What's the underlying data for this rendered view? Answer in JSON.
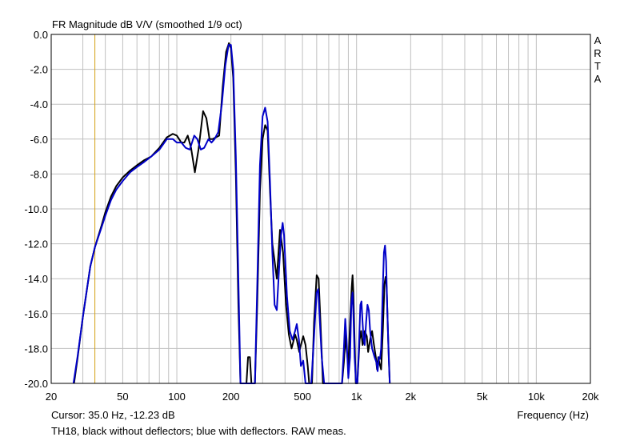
{
  "chart_data": {
    "type": "line",
    "title": "FR Magnitude dB V/V (smoothed 1/9 oct)",
    "brand_label": "ARTA",
    "xlabel": "Frequency (Hz)",
    "x_scale": "log",
    "xlim": [
      20,
      20000
    ],
    "ylim": [
      -20,
      0
    ],
    "grid": true,
    "x_ticks": [
      {
        "value": 20,
        "label": "20"
      },
      {
        "value": 50,
        "label": "50"
      },
      {
        "value": 100,
        "label": "100"
      },
      {
        "value": 200,
        "label": "200"
      },
      {
        "value": 500,
        "label": "500"
      },
      {
        "value": 1000,
        "label": "1k"
      },
      {
        "value": 2000,
        "label": "2k"
      },
      {
        "value": 5000,
        "label": "5k"
      },
      {
        "value": 10000,
        "label": "10k"
      },
      {
        "value": 20000,
        "label": "20k"
      }
    ],
    "y_ticks": [
      {
        "value": 0,
        "label": "0.0"
      },
      {
        "value": -2,
        "label": "-2.0"
      },
      {
        "value": -4,
        "label": "-4.0"
      },
      {
        "value": -6,
        "label": "-6.0"
      },
      {
        "value": -8,
        "label": "-8.0"
      },
      {
        "value": -10,
        "label": "-10.0"
      },
      {
        "value": -12,
        "label": "-12.0"
      },
      {
        "value": -14,
        "label": "-14.0"
      },
      {
        "value": -16,
        "label": "-16.0"
      },
      {
        "value": -18,
        "label": "-18.0"
      },
      {
        "value": -20,
        "label": "-20.0"
      }
    ],
    "cursor": {
      "x": 35.0,
      "color": "#d4a017"
    },
    "cursor_text": "Cursor: 35.0 Hz, -12.23 dB",
    "caption": "TH18, black without deflectors; blue with deflectors. RAW meas.",
    "series": [
      {
        "color": "#000000",
        "points": [
          [
            26.8,
            -20.0
          ],
          [
            28,
            -18.6
          ],
          [
            30,
            -16.2
          ],
          [
            33,
            -13.3
          ],
          [
            35,
            -12.2
          ],
          [
            38,
            -11.0
          ],
          [
            40,
            -10.2
          ],
          [
            43,
            -9.3
          ],
          [
            46,
            -8.7
          ],
          [
            50,
            -8.2
          ],
          [
            55,
            -7.8
          ],
          [
            60,
            -7.5
          ],
          [
            66,
            -7.2
          ],
          [
            72,
            -7.0
          ],
          [
            80,
            -6.5
          ],
          [
            88,
            -5.9
          ],
          [
            95,
            -5.7
          ],
          [
            100,
            -5.8
          ],
          [
            106,
            -6.2
          ],
          [
            110,
            -6.2
          ],
          [
            115,
            -5.8
          ],
          [
            120,
            -6.5
          ],
          [
            126,
            -7.9
          ],
          [
            132,
            -6.6
          ],
          [
            140,
            -4.4
          ],
          [
            146,
            -4.8
          ],
          [
            152,
            -6.0
          ],
          [
            158,
            -6.0
          ],
          [
            165,
            -5.9
          ],
          [
            172,
            -5.8
          ],
          [
            180,
            -3.0
          ],
          [
            188,
            -1.0
          ],
          [
            195,
            -0.5
          ],
          [
            200,
            -0.8
          ],
          [
            206,
            -2.5
          ],
          [
            213,
            -8.0
          ],
          [
            220,
            -15.5
          ],
          [
            226,
            -20.0
          ],
          [
            244,
            -20.0
          ],
          [
            249,
            -18.5
          ],
          [
            255,
            -18.5
          ],
          [
            260,
            -20.0
          ],
          [
            272,
            -20.0
          ],
          [
            280,
            -15.5
          ],
          [
            290,
            -9.0
          ],
          [
            300,
            -6.0
          ],
          [
            310,
            -5.2
          ],
          [
            320,
            -5.5
          ],
          [
            330,
            -9.0
          ],
          [
            340,
            -12.0
          ],
          [
            350,
            -13.0
          ],
          [
            360,
            -14.0
          ],
          [
            375,
            -11.2
          ],
          [
            390,
            -12.5
          ],
          [
            405,
            -15.5
          ],
          [
            420,
            -17.2
          ],
          [
            435,
            -18.0
          ],
          [
            445,
            -17.6
          ],
          [
            455,
            -17.2
          ],
          [
            465,
            -17.5
          ],
          [
            480,
            -18.2
          ],
          [
            490,
            -17.8
          ],
          [
            505,
            -17.3
          ],
          [
            520,
            -17.8
          ],
          [
            535,
            -19.0
          ],
          [
            545,
            -20.0
          ],
          [
            565,
            -20.0
          ],
          [
            580,
            -16.5
          ],
          [
            600,
            -13.8
          ],
          [
            615,
            -14.0
          ],
          [
            630,
            -16.5
          ],
          [
            650,
            -20.0
          ],
          [
            830,
            -20.0
          ],
          [
            850,
            -18.8
          ],
          [
            870,
            -17.2
          ],
          [
            880,
            -18.0
          ],
          [
            900,
            -19.0
          ],
          [
            920,
            -16.5
          ],
          [
            940,
            -14.5
          ],
          [
            950,
            -13.8
          ],
          [
            960,
            -14.8
          ],
          [
            975,
            -17.5
          ],
          [
            990,
            -20.0
          ],
          [
            1010,
            -20.0
          ],
          [
            1040,
            -17.5
          ],
          [
            1060,
            -17.0
          ],
          [
            1080,
            -17.8
          ],
          [
            1110,
            -17.0
          ],
          [
            1140,
            -17.3
          ],
          [
            1160,
            -18.2
          ],
          [
            1190,
            -17.5
          ],
          [
            1220,
            -17.0
          ],
          [
            1250,
            -17.8
          ],
          [
            1280,
            -18.5
          ],
          [
            1300,
            -19.2
          ],
          [
            1320,
            -18.5
          ],
          [
            1345,
            -18.9
          ],
          [
            1370,
            -19.2
          ],
          [
            1400,
            -17.0
          ],
          [
            1430,
            -14.3
          ],
          [
            1450,
            -13.9
          ],
          [
            1470,
            -14.5
          ],
          [
            1500,
            -17.5
          ],
          [
            1530,
            -20.0
          ]
        ]
      },
      {
        "color": "#0000c8",
        "points": [
          [
            26.6,
            -20.0
          ],
          [
            28,
            -18.5
          ],
          [
            30,
            -16.2
          ],
          [
            33,
            -13.3
          ],
          [
            35,
            -12.2
          ],
          [
            38,
            -11.1
          ],
          [
            40,
            -10.4
          ],
          [
            43,
            -9.5
          ],
          [
            46,
            -8.9
          ],
          [
            50,
            -8.4
          ],
          [
            55,
            -7.9
          ],
          [
            60,
            -7.6
          ],
          [
            66,
            -7.3
          ],
          [
            72,
            -7.0
          ],
          [
            80,
            -6.6
          ],
          [
            88,
            -6.0
          ],
          [
            95,
            -6.0
          ],
          [
            100,
            -6.2
          ],
          [
            106,
            -6.2
          ],
          [
            112,
            -6.5
          ],
          [
            118,
            -6.6
          ],
          [
            125,
            -5.8
          ],
          [
            130,
            -6.0
          ],
          [
            136,
            -6.6
          ],
          [
            142,
            -6.5
          ],
          [
            150,
            -6.0
          ],
          [
            156,
            -6.2
          ],
          [
            162,
            -6.0
          ],
          [
            170,
            -5.6
          ],
          [
            178,
            -4.0
          ],
          [
            186,
            -1.8
          ],
          [
            194,
            -0.6
          ],
          [
            200,
            -0.6
          ],
          [
            206,
            -2.0
          ],
          [
            213,
            -7.0
          ],
          [
            220,
            -14.0
          ],
          [
            226,
            -20.0
          ],
          [
            272,
            -20.0
          ],
          [
            280,
            -14.5
          ],
          [
            290,
            -7.5
          ],
          [
            300,
            -4.7
          ],
          [
            310,
            -4.2
          ],
          [
            320,
            -5.0
          ],
          [
            330,
            -8.5
          ],
          [
            340,
            -12.5
          ],
          [
            350,
            -15.5
          ],
          [
            360,
            -15.8
          ],
          [
            368,
            -14.0
          ],
          [
            380,
            -11.5
          ],
          [
            388,
            -10.8
          ],
          [
            395,
            -11.5
          ],
          [
            410,
            -15.0
          ],
          [
            425,
            -17.0
          ],
          [
            440,
            -17.5
          ],
          [
            455,
            -17.0
          ],
          [
            465,
            -16.6
          ],
          [
            478,
            -17.5
          ],
          [
            490,
            -19.0
          ],
          [
            505,
            -18.7
          ],
          [
            520,
            -20.0
          ],
          [
            560,
            -20.0
          ],
          [
            575,
            -18.0
          ],
          [
            590,
            -16.0
          ],
          [
            600,
            -14.8
          ],
          [
            612,
            -14.6
          ],
          [
            625,
            -16.5
          ],
          [
            640,
            -18.5
          ],
          [
            660,
            -20.0
          ],
          [
            830,
            -20.0
          ],
          [
            850,
            -18.0
          ],
          [
            865,
            -16.3
          ],
          [
            880,
            -17.5
          ],
          [
            900,
            -19.7
          ],
          [
            920,
            -18.5
          ],
          [
            935,
            -15.5
          ],
          [
            950,
            -14.8
          ],
          [
            960,
            -16.0
          ],
          [
            975,
            -18.5
          ],
          [
            995,
            -20.0
          ],
          [
            1010,
            -20.0
          ],
          [
            1030,
            -18.0
          ],
          [
            1050,
            -15.5
          ],
          [
            1065,
            -15.3
          ],
          [
            1080,
            -16.5
          ],
          [
            1095,
            -17.5
          ],
          [
            1110,
            -17.8
          ],
          [
            1130,
            -16.5
          ],
          [
            1150,
            -15.5
          ],
          [
            1170,
            -15.8
          ],
          [
            1190,
            -17.0
          ],
          [
            1220,
            -18.0
          ],
          [
            1260,
            -18.5
          ],
          [
            1290,
            -18.8
          ],
          [
            1310,
            -19.3
          ],
          [
            1330,
            -18.5
          ],
          [
            1350,
            -18.6
          ],
          [
            1370,
            -18.0
          ],
          [
            1400,
            -14.5
          ],
          [
            1420,
            -12.5
          ],
          [
            1440,
            -12.1
          ],
          [
            1460,
            -13.0
          ],
          [
            1480,
            -15.5
          ],
          [
            1510,
            -18.5
          ],
          [
            1530,
            -20.0
          ]
        ]
      }
    ]
  }
}
